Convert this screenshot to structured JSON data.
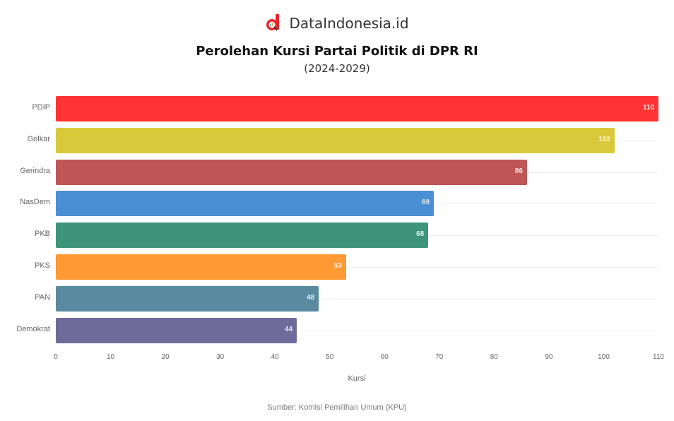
{
  "brand": {
    "name": "DataIndonesia.id",
    "logo_color": "#e8262b"
  },
  "chart_data": {
    "type": "bar",
    "orientation": "horizontal",
    "title": "Perolehan Kursi Partai Politik di DPR RI",
    "subtitle": "(2024-2029)",
    "categories": [
      "PDIP",
      "Golkar",
      "Gerindra",
      "NasDem",
      "PKB",
      "PKS",
      "PAN",
      "Demokrat"
    ],
    "values": [
      110,
      102,
      86,
      69,
      68,
      53,
      48,
      44
    ],
    "colors": [
      "#ff3333",
      "#d9c93a",
      "#bf5555",
      "#4a8fd4",
      "#3e9478",
      "#ff9933",
      "#5a8aa0",
      "#6e6a9a"
    ],
    "xlabel": "Kursi",
    "ylabel": "",
    "xlim": [
      0,
      110
    ],
    "xticks": [
      "0",
      "10",
      "20",
      "30",
      "40",
      "50",
      "60",
      "70",
      "80",
      "90",
      "100",
      "110"
    ],
    "grid": true,
    "legend": "none",
    "source": "Sumber: Komisi Pemilihan Umum (KPU)"
  }
}
